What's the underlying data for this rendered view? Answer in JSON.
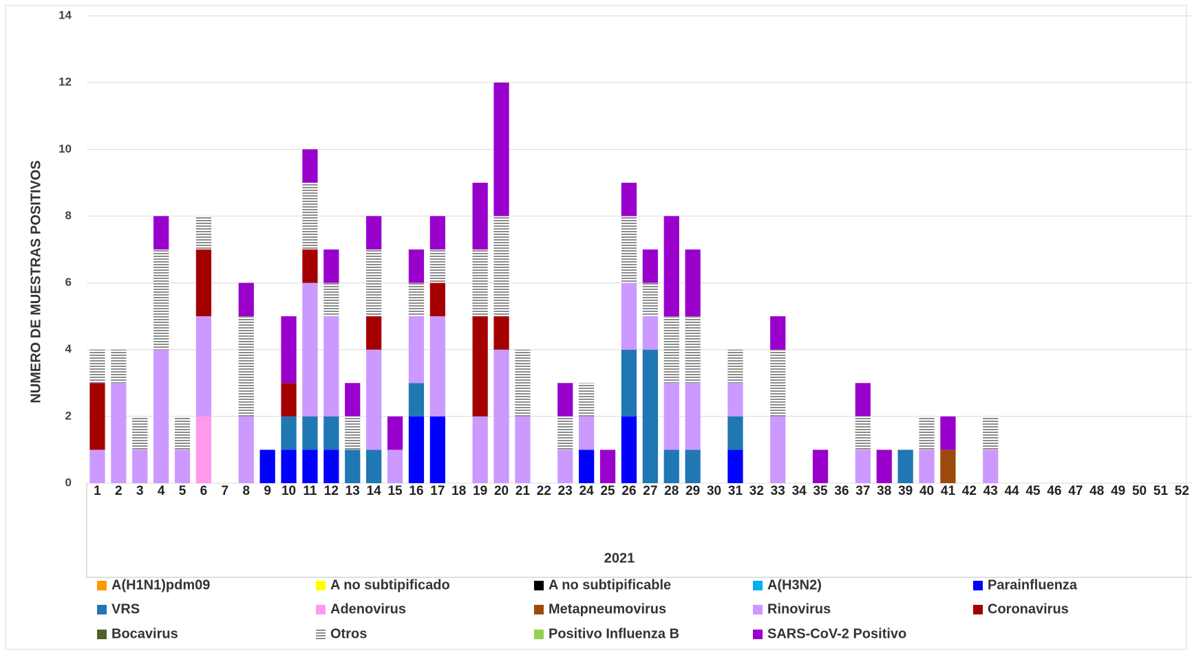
{
  "chart_data": {
    "type": "stacked_bar",
    "y_label": "NUMERO DE MUESTRAS POSITIVOS",
    "x_label": "2021",
    "categories": [
      "1",
      "2",
      "3",
      "4",
      "5",
      "6",
      "7",
      "8",
      "9",
      "10",
      "11",
      "12",
      "13",
      "14",
      "15",
      "16",
      "17",
      "18",
      "19",
      "20",
      "21",
      "22",
      "23",
      "24",
      "25",
      "26",
      "27",
      "28",
      "29",
      "30",
      "31",
      "32",
      "33",
      "34",
      "35",
      "36",
      "37",
      "38",
      "39",
      "40",
      "41",
      "42",
      "43",
      "44",
      "45",
      "46",
      "47",
      "48",
      "49",
      "50",
      "51",
      "52"
    ],
    "ylim": [
      0,
      14
    ],
    "yticks": [
      0,
      2,
      4,
      6,
      8,
      10,
      12,
      14
    ],
    "grid": true,
    "series": [
      {
        "name": "A(H1N1)pdm09",
        "color": "#ff9900",
        "values": [
          0,
          0,
          0,
          0,
          0,
          0,
          0,
          0,
          0,
          0,
          0,
          0,
          0,
          0,
          0,
          0,
          0,
          0,
          0,
          0,
          0,
          0,
          0,
          0,
          0,
          0,
          0,
          0,
          0,
          0,
          0,
          0,
          0,
          0,
          0,
          0,
          0,
          0,
          0,
          0,
          0,
          0,
          0,
          0,
          0,
          0,
          0,
          0,
          0,
          0,
          0,
          0
        ]
      },
      {
        "name": "A no subtipificado",
        "color": "#ffff00",
        "values": [
          0,
          0,
          0,
          0,
          0,
          0,
          0,
          0,
          0,
          0,
          0,
          0,
          0,
          0,
          0,
          0,
          0,
          0,
          0,
          0,
          0,
          0,
          0,
          0,
          0,
          0,
          0,
          0,
          0,
          0,
          0,
          0,
          0,
          0,
          0,
          0,
          0,
          0,
          0,
          0,
          0,
          0,
          0,
          0,
          0,
          0,
          0,
          0,
          0,
          0,
          0,
          0
        ]
      },
      {
        "name": "A no subtipificable",
        "color": "#000000",
        "values": [
          0,
          0,
          0,
          0,
          0,
          0,
          0,
          0,
          0,
          0,
          0,
          0,
          0,
          0,
          0,
          0,
          0,
          0,
          0,
          0,
          0,
          0,
          0,
          0,
          0,
          0,
          0,
          0,
          0,
          0,
          0,
          0,
          0,
          0,
          0,
          0,
          0,
          0,
          0,
          0,
          0,
          0,
          0,
          0,
          0,
          0,
          0,
          0,
          0,
          0,
          0,
          0
        ]
      },
      {
        "name": "A(H3N2)",
        "color": "#00b0f0",
        "values": [
          0,
          0,
          0,
          0,
          0,
          0,
          0,
          0,
          0,
          0,
          0,
          0,
          0,
          0,
          0,
          0,
          0,
          0,
          0,
          0,
          0,
          0,
          0,
          0,
          0,
          0,
          0,
          0,
          0,
          0,
          0,
          0,
          0,
          0,
          0,
          0,
          0,
          0,
          0,
          0,
          0,
          0,
          0,
          0,
          0,
          0,
          0,
          0,
          0,
          0,
          0,
          0
        ]
      },
      {
        "name": "Parainfluenza",
        "color": "#0000ff",
        "values": [
          0,
          0,
          0,
          0,
          0,
          0,
          0,
          0,
          1,
          1,
          1,
          1,
          0,
          0,
          0,
          2,
          2,
          0,
          0,
          0,
          0,
          0,
          0,
          1,
          0,
          2,
          0,
          0,
          0,
          0,
          1,
          0,
          0,
          0,
          0,
          0,
          0,
          0,
          0,
          0,
          0,
          0,
          0,
          0,
          0,
          0,
          0,
          0,
          0,
          0,
          0,
          0
        ]
      },
      {
        "name": "VRS",
        "color": "#1f77b4",
        "values": [
          0,
          0,
          0,
          0,
          0,
          0,
          0,
          0,
          0,
          1,
          1,
          1,
          1,
          1,
          0,
          1,
          0,
          0,
          0,
          0,
          0,
          0,
          0,
          0,
          0,
          2,
          4,
          1,
          1,
          0,
          1,
          0,
          0,
          0,
          0,
          0,
          0,
          0,
          1,
          0,
          0,
          0,
          0,
          0,
          0,
          0,
          0,
          0,
          0,
          0,
          0,
          0
        ]
      },
      {
        "name": "Adenovirus",
        "color": "#ff99ee",
        "values": [
          0,
          0,
          0,
          0,
          0,
          2,
          0,
          0,
          0,
          0,
          0,
          0,
          0,
          0,
          0,
          0,
          0,
          0,
          0,
          0,
          0,
          0,
          0,
          0,
          0,
          0,
          0,
          0,
          0,
          0,
          0,
          0,
          0,
          0,
          0,
          0,
          0,
          0,
          0,
          0,
          0,
          0,
          0,
          0,
          0,
          0,
          0,
          0,
          0,
          0,
          0,
          0
        ]
      },
      {
        "name": "Metapneumovirus",
        "color": "#9c4a0c",
        "values": [
          0,
          0,
          0,
          0,
          0,
          0,
          0,
          0,
          0,
          0,
          0,
          0,
          0,
          0,
          0,
          0,
          0,
          0,
          0,
          0,
          0,
          0,
          0,
          0,
          0,
          0,
          0,
          0,
          0,
          0,
          0,
          0,
          0,
          0,
          0,
          0,
          0,
          0,
          0,
          0,
          1,
          0,
          0,
          0,
          0,
          0,
          0,
          0,
          0,
          0,
          0,
          0
        ]
      },
      {
        "name": "Rinovirus",
        "color": "#cc99ff",
        "values": [
          1,
          3,
          1,
          4,
          1,
          3,
          0,
          2,
          0,
          0,
          4,
          3,
          0,
          3,
          1,
          2,
          3,
          0,
          2,
          4,
          2,
          0,
          1,
          1,
          0,
          2,
          1,
          2,
          2,
          0,
          1,
          0,
          2,
          0,
          0,
          0,
          1,
          0,
          0,
          1,
          0,
          0,
          1,
          0,
          0,
          0,
          0,
          0,
          0,
          0,
          0,
          0
        ]
      },
      {
        "name": "Coronavirus",
        "color": "#a50000",
        "values": [
          2,
          0,
          0,
          0,
          0,
          2,
          0,
          0,
          0,
          1,
          1,
          0,
          0,
          1,
          0,
          0,
          1,
          0,
          3,
          1,
          0,
          0,
          0,
          0,
          0,
          0,
          0,
          0,
          0,
          0,
          0,
          0,
          0,
          0,
          0,
          0,
          0,
          0,
          0,
          0,
          0,
          0,
          0,
          0,
          0,
          0,
          0,
          0,
          0,
          0,
          0,
          0
        ]
      },
      {
        "name": "Bocavirus",
        "color": "#4f6228",
        "values": [
          0,
          0,
          0,
          0,
          0,
          0,
          0,
          0,
          0,
          0,
          0,
          0,
          0,
          0,
          0,
          0,
          0,
          0,
          0,
          0,
          0,
          0,
          0,
          0,
          0,
          0,
          0,
          0,
          0,
          0,
          0,
          0,
          0,
          0,
          0,
          0,
          0,
          0,
          0,
          0,
          0,
          0,
          0,
          0,
          0,
          0,
          0,
          0,
          0,
          0,
          0,
          0
        ]
      },
      {
        "name": "Otros",
        "color": "#8c8c8c",
        "values": [
          1,
          1,
          1,
          3,
          1,
          1,
          0,
          3,
          0,
          0,
          2,
          1,
          1,
          2,
          0,
          1,
          1,
          0,
          2,
          3,
          2,
          0,
          1,
          1,
          0,
          2,
          1,
          2,
          2,
          0,
          1,
          0,
          2,
          0,
          0,
          0,
          1,
          0,
          0,
          1,
          0,
          0,
          1,
          0,
          0,
          0,
          0,
          0,
          0,
          0,
          0,
          0
        ]
      },
      {
        "name": "Positivo Influenza B",
        "color": "#92d050",
        "values": [
          0,
          0,
          0,
          0,
          0,
          0,
          0,
          0,
          0,
          0,
          0,
          0,
          0,
          0,
          0,
          0,
          0,
          0,
          0,
          0,
          0,
          0,
          0,
          0,
          0,
          0,
          0,
          0,
          0,
          0,
          0,
          0,
          0,
          0,
          0,
          0,
          0,
          0,
          0,
          0,
          0,
          0,
          0,
          0,
          0,
          0,
          0,
          0,
          0,
          0,
          0,
          0
        ]
      },
      {
        "name": "SARS-CoV-2 Positivo",
        "color": "#9900cc",
        "values": [
          0,
          0,
          0,
          1,
          0,
          0,
          0,
          1,
          0,
          2,
          1,
          1,
          1,
          1,
          1,
          1,
          1,
          0,
          2,
          4,
          0,
          0,
          1,
          0,
          1,
          1,
          1,
          3,
          2,
          0,
          0,
          0,
          1,
          0,
          1,
          0,
          1,
          1,
          0,
          0,
          1,
          0,
          0,
          0,
          0,
          0,
          0,
          0,
          0,
          0,
          0,
          0
        ]
      }
    ]
  }
}
